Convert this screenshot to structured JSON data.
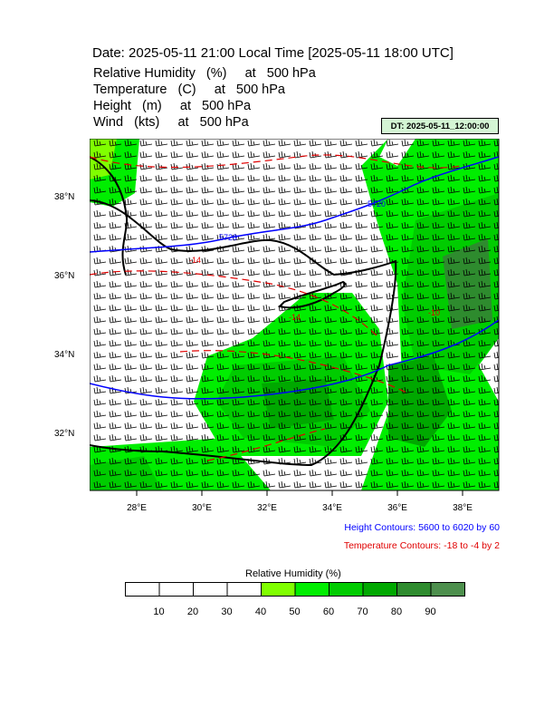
{
  "header": {
    "title": "Date: 2025-05-11  21:00 Local Time [2025-05-11  18:00 UTC]",
    "variables": [
      "Relative Humidity   (%)     at   500 hPa",
      "Temperature   (C)     at   500 hPa",
      "Height   (m)     at   500 hPa",
      "Wind   (kts)     at   500 hPa"
    ],
    "dt_badge": "DT: 2025-05-11_12:00:00"
  },
  "map": {
    "lon_ticks": [
      "28°E",
      "30°E",
      "32°E",
      "34°E",
      "36°E",
      "38°E"
    ],
    "lat_ticks": [
      "38°N",
      "36°N",
      "34°N",
      "32°N"
    ],
    "height_labels": [
      "5720",
      "5720"
    ],
    "temp_labels": [
      "-14",
      "-14",
      "-10"
    ],
    "colors": {
      "coast": "#000000",
      "height": "#0000ff",
      "temperature": "#e00000"
    }
  },
  "notes": {
    "height": "Height Contours: 5600 to 6020 by 60",
    "temperature": "Temperature Contours: -18 to -4 by 2"
  },
  "legend": {
    "title": "Relative Humidity  (%)",
    "bins": [
      {
        "color": "#ffffff"
      },
      {
        "color": "#ffffff"
      },
      {
        "color": "#ffffff"
      },
      {
        "color": "#ffffff"
      },
      {
        "color": "#80ff00"
      },
      {
        "color": "#00ee00"
      },
      {
        "color": "#00cc00"
      },
      {
        "color": "#00a800"
      },
      {
        "color": "#2e8b2e"
      },
      {
        "color": "#4d8f4d"
      }
    ],
    "labels": [
      "10",
      "20",
      "30",
      "40",
      "50",
      "60",
      "70",
      "80",
      "90"
    ]
  }
}
